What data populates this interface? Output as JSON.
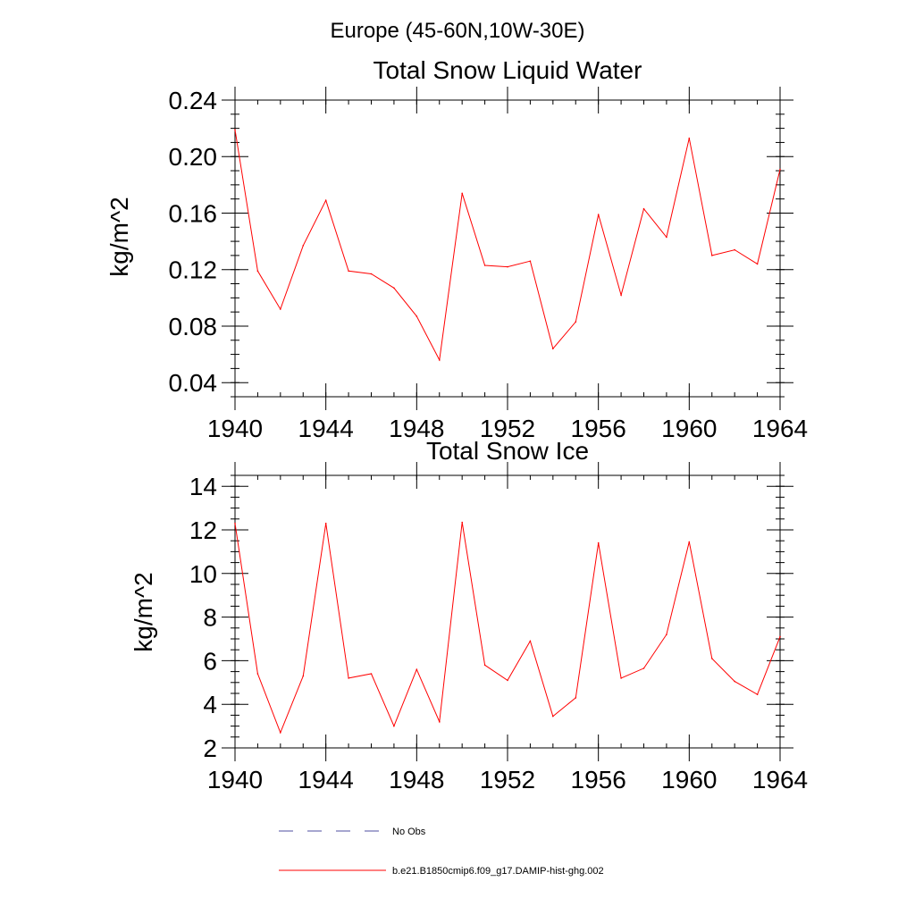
{
  "figure": {
    "suptitle": "Europe (45-60N,10W-30E)"
  },
  "chart_data": [
    {
      "type": "line",
      "title": "Total Snow Liquid Water",
      "xlabel": "",
      "ylabel": "kg/m^2",
      "xlim": [
        1940,
        1964
      ],
      "ylim": [
        0.03,
        0.24
      ],
      "xticks": [
        1940,
        1944,
        1948,
        1952,
        1956,
        1960,
        1964
      ],
      "xtick_labels": [
        "1940",
        "1944",
        "1948",
        "1952",
        "1956",
        "1960",
        "1964"
      ],
      "yticks": [
        0.04,
        0.08,
        0.12,
        0.16,
        0.2,
        0.24
      ],
      "ytick_labels": [
        "0.04",
        "0.08",
        "0.12",
        "0.16",
        "0.20",
        "0.24"
      ],
      "yminor_step": 0.01,
      "grid": false,
      "x": [
        1940,
        1941,
        1942,
        1943,
        1944,
        1945,
        1946,
        1947,
        1948,
        1949,
        1950,
        1951,
        1952,
        1953,
        1954,
        1955,
        1956,
        1957,
        1958,
        1959,
        1960,
        1961,
        1962,
        1963,
        1964
      ],
      "series": [
        {
          "name": "b.e21.B1850cmip6.f09_g17.DAMIP-hist-ghg.002",
          "color": "#ff0000",
          "values": [
            0.219,
            0.119,
            0.092,
            0.137,
            0.169,
            0.119,
            0.117,
            0.107,
            0.087,
            0.056,
            0.174,
            0.123,
            0.122,
            0.126,
            0.064,
            0.083,
            0.159,
            0.102,
            0.163,
            0.143,
            0.213,
            0.13,
            0.134,
            0.124,
            0.191
          ]
        }
      ]
    },
    {
      "type": "line",
      "title": "Total Snow Ice",
      "xlabel": "",
      "ylabel": "kg/m^2",
      "xlim": [
        1940,
        1964
      ],
      "ylim": [
        2,
        14.5
      ],
      "xticks": [
        1940,
        1944,
        1948,
        1952,
        1956,
        1960,
        1964
      ],
      "xtick_labels": [
        "1940",
        "1944",
        "1948",
        "1952",
        "1956",
        "1960",
        "1964"
      ],
      "yticks": [
        2,
        4,
        6,
        8,
        10,
        12,
        14
      ],
      "ytick_labels": [
        "2",
        "4",
        "6",
        "8",
        "10",
        "12",
        "14"
      ],
      "yminor_step": 0.5,
      "grid": false,
      "x": [
        1940,
        1941,
        1942,
        1943,
        1944,
        1945,
        1946,
        1947,
        1948,
        1949,
        1950,
        1951,
        1952,
        1953,
        1954,
        1955,
        1956,
        1957,
        1958,
        1959,
        1960,
        1961,
        1962,
        1963,
        1964
      ],
      "series": [
        {
          "name": "b.e21.B1850cmip6.f09_g17.DAMIP-hist-ghg.002",
          "color": "#ff0000",
          "values": [
            12.3,
            5.4,
            2.7,
            5.3,
            12.3,
            5.2,
            5.4,
            3.0,
            5.6,
            3.2,
            12.35,
            5.8,
            5.1,
            6.9,
            3.45,
            4.3,
            11.4,
            5.2,
            5.65,
            7.2,
            11.45,
            6.1,
            5.05,
            4.45,
            7.1
          ]
        }
      ]
    }
  ],
  "legend": {
    "placement": "bottom-center",
    "items": [
      {
        "label": "No Obs",
        "color": "#4f4fa0",
        "style": "dashed"
      },
      {
        "label": "b.e21.B1850cmip6.f09_g17.DAMIP-hist-ghg.002",
        "color": "#ff0000",
        "style": "solid"
      }
    ]
  }
}
